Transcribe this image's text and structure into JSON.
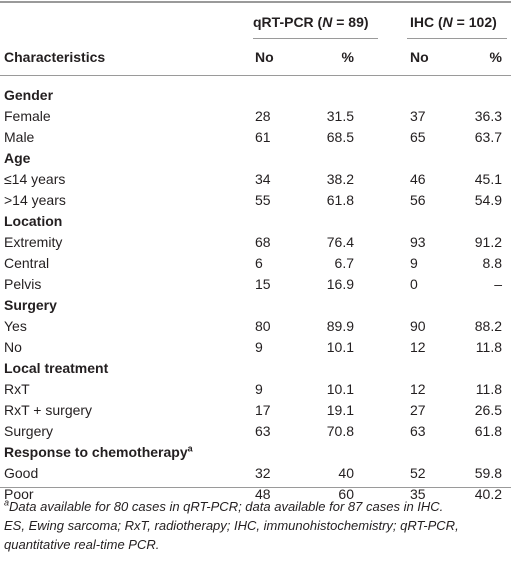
{
  "header": {
    "groups": [
      {
        "name": "qRT-PCR (",
        "n": "N",
        "count": " = 89)"
      },
      {
        "name": "IHC (",
        "n": "N",
        "count": " = 102)"
      }
    ],
    "columns": [
      "Characteristics",
      "No",
      "%",
      "No",
      "%"
    ]
  },
  "table": {
    "sections": [
      {
        "title": "Gender",
        "rows": [
          [
            "Female",
            28,
            31.5,
            37,
            36.3
          ],
          [
            "Male",
            61,
            68.5,
            65,
            63.7
          ]
        ]
      },
      {
        "title": "Age",
        "rows": [
          [
            "≤14 years",
            34,
            38.2,
            46,
            45.1
          ],
          [
            ">14 years",
            55,
            61.8,
            56,
            54.9
          ]
        ]
      },
      {
        "title": "Location",
        "rows": [
          [
            "Extremity",
            68,
            76.4,
            93,
            91.2
          ],
          [
            "Central",
            6,
            6.7,
            9,
            8.8
          ],
          [
            "Pelvis",
            15,
            16.9,
            0,
            "–"
          ]
        ]
      },
      {
        "title": "Surgery",
        "rows": [
          [
            "Yes",
            80,
            89.9,
            90,
            88.2
          ],
          [
            "No",
            9,
            10.1,
            12,
            11.8
          ]
        ]
      },
      {
        "title": "Local treatment",
        "rows": [
          [
            "RxT",
            9,
            10.1,
            12,
            11.8
          ],
          [
            "RxT + surgery",
            17,
            19.1,
            27,
            26.5
          ],
          [
            "Surgery",
            63,
            70.8,
            63,
            61.8
          ]
        ]
      },
      {
        "title": "Response to chemotherapy",
        "note": "a",
        "rows": [
          [
            "Good",
            32,
            40,
            52,
            59.8
          ],
          [
            "Poor",
            48,
            60,
            35,
            40.2
          ]
        ]
      }
    ]
  },
  "footnotes": [
    {
      "mark": "a",
      "text": "Data available for 80 cases in qRT-PCR; data available for 87 cases in IHC."
    },
    {
      "text": "ES, Ewing sarcoma; RxT, radiotherapy; IHC, immunohistochemistry; qRT-PCR, quantitative real-time PCR."
    }
  ]
}
